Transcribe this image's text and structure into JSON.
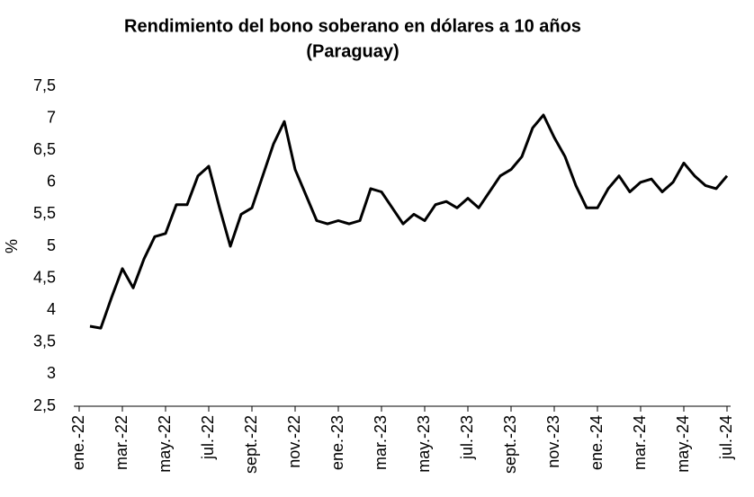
{
  "chart_data": {
    "type": "line",
    "title": "Rendimiento del bono soberano en dólares a 10 años",
    "subtitle": "(Paraguay)",
    "y_label": "%",
    "categories": [
      "ene.-22",
      null,
      null,
      null,
      "mar.-22",
      null,
      null,
      null,
      "may.-22",
      null,
      null,
      null,
      "jul.-22",
      null,
      null,
      null,
      "sept.-22",
      null,
      null,
      null,
      "nov.-22",
      null,
      null,
      null,
      "ene.-23",
      null,
      null,
      null,
      "mar.-23",
      null,
      null,
      null,
      "may.-23",
      null,
      null,
      null,
      "jul.-23",
      null,
      null,
      null,
      "sept.-23",
      null,
      null,
      null,
      "nov.-23",
      null,
      null,
      null,
      "ene.-24",
      null,
      null,
      null,
      "mar.-24",
      null,
      null,
      null,
      "may.-24",
      null,
      null,
      null,
      "jul.-24"
    ],
    "values": [
      null,
      3.75,
      3.72,
      4.2,
      4.65,
      4.35,
      4.8,
      5.15,
      5.2,
      5.65,
      5.65,
      6.1,
      6.25,
      5.6,
      5.0,
      5.5,
      5.6,
      6.1,
      6.6,
      6.95,
      6.2,
      5.8,
      5.4,
      5.35,
      5.4,
      5.35,
      5.4,
      5.9,
      5.85,
      5.6,
      5.35,
      5.5,
      5.4,
      5.65,
      5.7,
      5.6,
      5.75,
      5.6,
      5.85,
      6.1,
      6.2,
      6.4,
      6.85,
      7.05,
      6.7,
      6.4,
      5.95,
      5.6,
      5.6,
      5.9,
      6.1,
      5.85,
      6.0,
      6.05,
      5.85,
      6.0,
      6.3,
      6.1,
      5.95,
      5.9,
      6.1
    ],
    "color": "#000000",
    "ylim": [
      2.5,
      7.5
    ],
    "yticks": [
      {
        "value": 2.5,
        "label": "2,5"
      },
      3,
      {
        "value": 3.5,
        "label": "3,5"
      },
      4,
      {
        "value": 4.5,
        "label": "4,5"
      },
      5,
      {
        "value": 5.5,
        "label": "5,5"
      },
      6,
      {
        "value": 6.5,
        "label": "6,5"
      },
      7,
      {
        "value": 7.5,
        "label": "7,5"
      }
    ],
    "grid": false
  }
}
